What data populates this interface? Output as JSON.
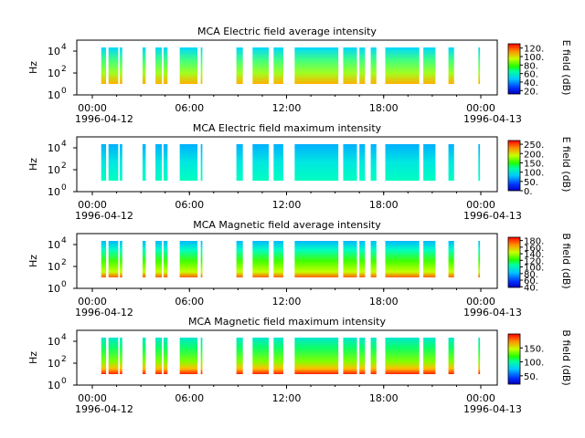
{
  "chart_data": [
    {
      "type": "heatmap",
      "title": "MCA  Electric field average intensity",
      "ylabel": "Hz",
      "colorbar_label": "E field (dB)",
      "colorbar_range": [
        12,
        130
      ],
      "colorbar_ticks": [
        "20.",
        "40.",
        "60.",
        "80.",
        "100.",
        "120."
      ],
      "y_tick_exponents": [
        "0",
        "2",
        "4"
      ],
      "x_ticks": [
        "00:00",
        "06:00",
        "12:00",
        "18:00",
        "00:00"
      ],
      "x_dates": [
        "1996-04-12",
        "1996-04-13"
      ]
    },
    {
      "type": "heatmap",
      "title": "MCA  Electric field maximum intensity",
      "ylabel": "Hz",
      "colorbar_label": "E field (dB)",
      "colorbar_range": [
        0,
        270
      ],
      "colorbar_ticks": [
        "0.",
        "50.",
        "100.",
        "150.",
        "200.",
        "250."
      ],
      "y_tick_exponents": [
        "0",
        "2",
        "4"
      ],
      "x_ticks": [
        "00:00",
        "06:00",
        "12:00",
        "18:00",
        "00:00"
      ],
      "x_dates": [
        "1996-04-12",
        "1996-04-13"
      ]
    },
    {
      "type": "heatmap",
      "title": "MCA  Magnetic field average intensity",
      "ylabel": "Hz",
      "colorbar_label": "B field (dB)",
      "colorbar_range": [
        38,
        190
      ],
      "colorbar_ticks": [
        "40.",
        "60.",
        "80.",
        "100.",
        "120.",
        "140.",
        "160.",
        "180."
      ],
      "y_tick_exponents": [
        "0",
        "2",
        "4"
      ],
      "x_ticks": [
        "00:00",
        "06:00",
        "12:00",
        "18:00",
        "00:00"
      ],
      "x_dates": [
        "1996-04-12",
        "1996-04-13"
      ]
    },
    {
      "type": "heatmap",
      "title": "MCA  Magnetic field maximum intensity",
      "ylabel": "Hz",
      "colorbar_label": "B field (dB)",
      "colorbar_range": [
        20,
        200
      ],
      "colorbar_ticks": [
        "50.",
        "100.",
        "150."
      ],
      "y_tick_exponents": [
        "0",
        "2",
        "4"
      ],
      "x_ticks": [
        "00:00",
        "06:00",
        "12:00",
        "18:00",
        "00:00"
      ],
      "x_dates": [
        "1996-04-12",
        "1996-04-13"
      ]
    }
  ],
  "data_segments_hours": [
    [
      0.55,
      0.85
    ],
    [
      1.0,
      1.6
    ],
    [
      1.7,
      1.85
    ],
    [
      3.1,
      3.3
    ],
    [
      3.9,
      4.3
    ],
    [
      4.4,
      4.65
    ],
    [
      5.4,
      6.5
    ],
    [
      6.7,
      6.8
    ],
    [
      8.9,
      9.3
    ],
    [
      9.9,
      10.9
    ],
    [
      11.2,
      11.8
    ],
    [
      12.5,
      15.2
    ],
    [
      15.5,
      16.35
    ],
    [
      16.5,
      16.85
    ],
    [
      17.2,
      17.55
    ],
    [
      18.1,
      20.2
    ],
    [
      20.45,
      21.2
    ],
    [
      22.0,
      22.35
    ],
    [
      23.85,
      23.95
    ]
  ]
}
